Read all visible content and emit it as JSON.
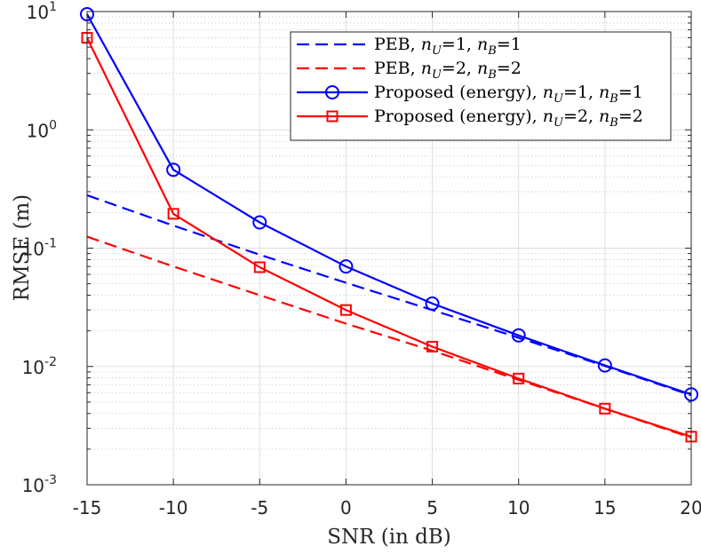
{
  "chart_data": {
    "type": "line",
    "title": "",
    "xlabel": "SNR (in dB)",
    "ylabel": "RMSE (m)",
    "xlim": [
      -15,
      20
    ],
    "ylim_exponent": [
      -3,
      1
    ],
    "yscale": "log",
    "grid": true,
    "legend_placement": "top-right",
    "x_ticks": [
      "-15",
      "-10",
      "-5",
      "0",
      "5",
      "10",
      "15",
      "20"
    ],
    "y_ticks": [
      {
        "base": "10",
        "exp": "-3"
      },
      {
        "base": "10",
        "exp": "-2"
      },
      {
        "base": "10",
        "exp": "-1"
      },
      {
        "base": "10",
        "exp": "0"
      },
      {
        "base": "10",
        "exp": "1"
      }
    ],
    "x": [
      -15,
      -10,
      -5,
      0,
      5,
      10,
      15,
      20
    ],
    "series": [
      {
        "name": "PEB, nU=1, nB=1",
        "label_parts": [
          "PEB, ",
          "n",
          "U",
          "=1, ",
          "n",
          "B",
          "=1"
        ],
        "color": "#0000ff",
        "style": "dashed",
        "marker": "none",
        "values": [
          0.28,
          0.155,
          0.088,
          0.051,
          0.03,
          0.0175,
          0.0101,
          0.0057
        ]
      },
      {
        "name": "PEB, nU=2, nB=2",
        "label_parts": [
          "PEB, ",
          "n",
          "U",
          "=2, ",
          "n",
          "B",
          "=2"
        ],
        "color": "#ff0000",
        "style": "dashed",
        "marker": "none",
        "values": [
          0.125,
          0.07,
          0.04,
          0.023,
          0.0136,
          0.0077,
          0.0044,
          0.0025
        ]
      },
      {
        "name": "Proposed (energy), nU=1, nB=1",
        "label_parts": [
          "Proposed (energy), ",
          "n",
          "U",
          "=1, ",
          "n",
          "B",
          "=1"
        ],
        "color": "#0000ff",
        "style": "solid",
        "marker": "circle",
        "values": [
          9.5,
          0.46,
          0.165,
          0.07,
          0.034,
          0.0183,
          0.0102,
          0.0058
        ]
      },
      {
        "name": "Proposed (energy), nU=2, nB=2",
        "label_parts": [
          "Proposed (energy), ",
          "n",
          "U",
          "=2, ",
          "n",
          "B",
          "=2"
        ],
        "color": "#ff0000",
        "style": "solid",
        "marker": "square",
        "values": [
          6.0,
          0.195,
          0.069,
          0.03,
          0.0147,
          0.0079,
          0.0044,
          0.00255
        ]
      }
    ]
  }
}
